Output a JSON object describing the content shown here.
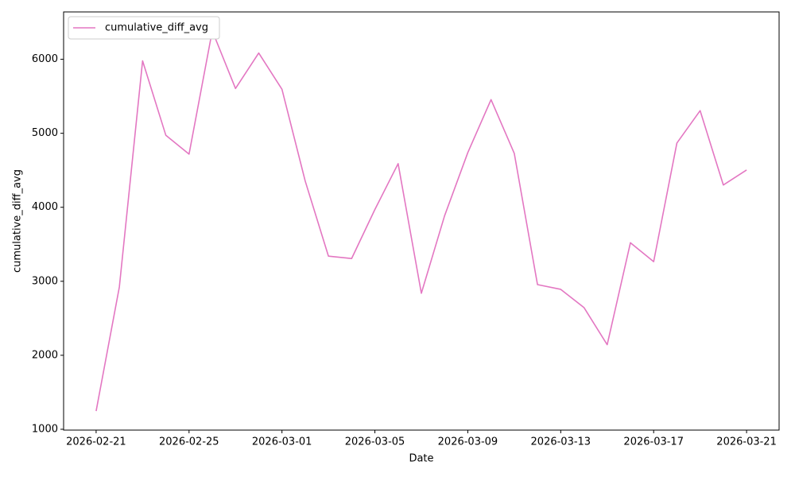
{
  "chart_data": {
    "type": "line",
    "x_label": "Date",
    "y_label": "cumulative_diff_avg",
    "x": [
      "2026-02-21",
      "2026-02-22",
      "2026-02-23",
      "2026-02-24",
      "2026-02-25",
      "2026-02-26",
      "2026-02-27",
      "2026-02-28",
      "2026-03-01",
      "2026-03-02",
      "2026-03-03",
      "2026-03-04",
      "2026-03-05",
      "2026-03-06",
      "2026-03-07",
      "2026-03-08",
      "2026-03-09",
      "2026-03-10",
      "2026-03-11",
      "2026-03-12",
      "2026-03-13",
      "2026-03-14",
      "2026-03-15",
      "2026-03-16",
      "2026-03-17",
      "2026-03-18",
      "2026-03-19",
      "2026-03-20",
      "2026-03-21"
    ],
    "series": [
      {
        "name": "cumulative_diff_avg",
        "color": "#e377c2",
        "values": [
          1246,
          2923,
          5979,
          4974,
          4718,
          6385,
          5605,
          6085,
          5594,
          4355,
          3340,
          3308,
          3970,
          4590,
          2838,
          3885,
          4739,
          5455,
          4729,
          2955,
          2891,
          2645,
          2143,
          3521,
          3265,
          4868,
          5306,
          4301,
          4504
        ]
      }
    ],
    "xticks": [
      "2026-02-21",
      "2026-02-25",
      "2026-03-01",
      "2026-03-05",
      "2026-03-09",
      "2026-03-13",
      "2026-03-17",
      "2026-03-21"
    ],
    "ylim": [
      989,
      6640
    ],
    "yticks": [
      1000,
      2000,
      3000,
      4000,
      5000,
      6000
    ],
    "legend": "upper left",
    "grid": false
  }
}
